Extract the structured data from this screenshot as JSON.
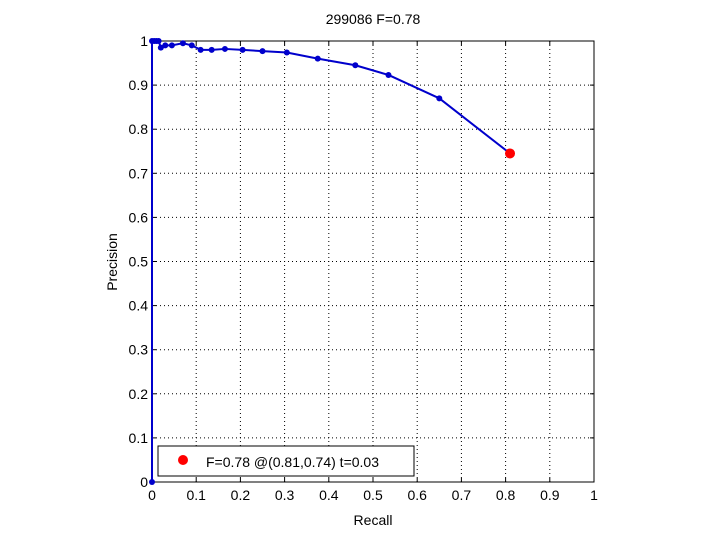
{
  "chart_data": {
    "type": "line",
    "title": "299086 F=0.78",
    "xlabel": "Recall",
    "ylabel": "Precision",
    "xlim": [
      0,
      1
    ],
    "ylim": [
      0,
      1
    ],
    "xticks": [
      "0",
      "0.1",
      "0.2",
      "0.3",
      "0.4",
      "0.5",
      "0.6",
      "0.7",
      "0.8",
      "0.9",
      "1"
    ],
    "yticks": [
      "0",
      "0.1",
      "0.2",
      "0.3",
      "0.4",
      "0.5",
      "0.6",
      "0.7",
      "0.8",
      "0.9",
      "1"
    ],
    "grid": true,
    "grid_style": "dotted",
    "series": [
      {
        "color": "#0000cc",
        "marker": "circle",
        "points": [
          [
            0.0,
            0.0
          ],
          [
            0.0,
            1.0
          ],
          [
            0.005,
            1.0
          ],
          [
            0.01,
            1.0
          ],
          [
            0.015,
            1.0
          ],
          [
            0.02,
            0.985
          ],
          [
            0.03,
            0.99
          ],
          [
            0.045,
            0.99
          ],
          [
            0.07,
            0.995
          ],
          [
            0.09,
            0.99
          ],
          [
            0.11,
            0.98
          ],
          [
            0.135,
            0.98
          ],
          [
            0.165,
            0.982
          ],
          [
            0.205,
            0.98
          ],
          [
            0.25,
            0.977
          ],
          [
            0.305,
            0.974
          ],
          [
            0.375,
            0.96
          ],
          [
            0.46,
            0.945
          ],
          [
            0.535,
            0.923
          ],
          [
            0.65,
            0.87
          ],
          [
            0.81,
            0.745
          ]
        ]
      }
    ],
    "highlight_point": {
      "x": 0.81,
      "y": 0.745,
      "color": "#ff0000"
    },
    "legend": {
      "position": "bottom-left",
      "entries": [
        {
          "label": "F=0.78 @(0.81,0.74) t=0.03",
          "color": "#ff0000",
          "marker": "circle"
        }
      ]
    }
  }
}
